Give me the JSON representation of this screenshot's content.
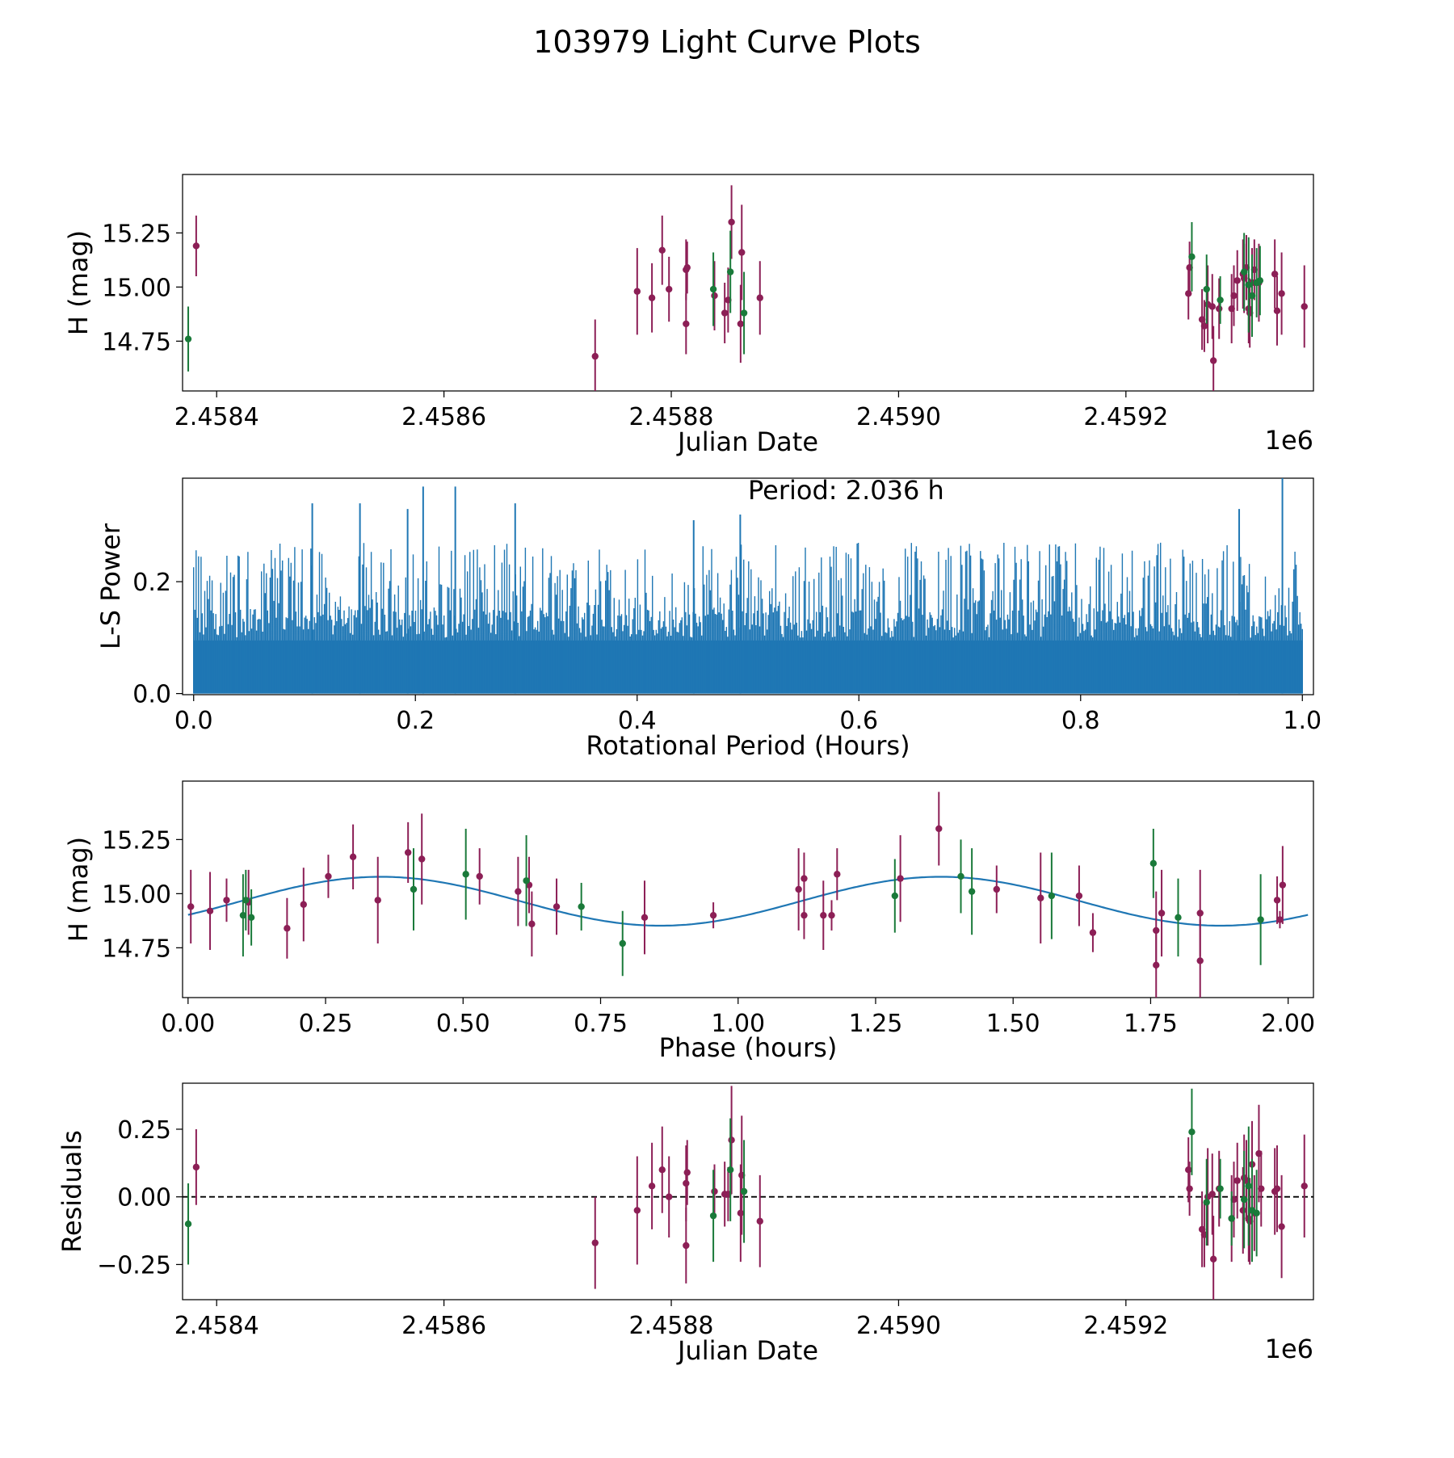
{
  "figure": {
    "title": "103979 Light Curve Plots"
  },
  "colors": {
    "primary": "#8c1f56",
    "secondary": "#1a7a3a",
    "periodogram": "#1f77b4",
    "model": "#1f77b4",
    "zero_line": "#000000"
  },
  "chart_data": [
    {
      "id": "lightcurve",
      "type": "scatter",
      "title": "",
      "xlabel": "Julian Date",
      "ylabel": "H (mag)",
      "x_offset_label": "1e6",
      "xlim": [
        2.45837,
        2.459365
      ],
      "ylim": [
        14.52,
        15.52
      ],
      "xticks": [
        2.4584,
        2.4586,
        2.4588,
        2.459,
        2.4592
      ],
      "xtick_labels": [
        "2.4584",
        "2.4586",
        "2.4588",
        "2.4590",
        "2.4592"
      ],
      "yticks": [
        14.75,
        15.0,
        15.25
      ],
      "ytick_labels": [
        "14.75",
        "15.00",
        "15.25"
      ],
      "series": [
        {
          "name": "band-1",
          "color_key": "primary",
          "points": [
            [
              2.458382,
              15.19,
              0.14
            ],
            [
              2.458733,
              14.68,
              0.17
            ],
            [
              2.45877,
              14.98,
              0.2
            ],
            [
              2.458783,
              14.95,
              0.16
            ],
            [
              2.458792,
              15.17,
              0.16
            ],
            [
              2.458798,
              14.99,
              0.15
            ],
            [
              2.458813,
              15.08,
              0.14
            ],
            [
              2.458814,
              15.09,
              0.12
            ],
            [
              2.458813,
              14.83,
              0.14
            ],
            [
              2.458838,
              14.96,
              0.16
            ],
            [
              2.458847,
              14.88,
              0.14
            ],
            [
              2.45885,
              14.94,
              0.15
            ],
            [
              2.458853,
              15.3,
              0.17
            ],
            [
              2.458861,
              14.83,
              0.18
            ],
            [
              2.458862,
              15.16,
              0.22
            ],
            [
              2.458878,
              14.95,
              0.17
            ],
            [
              2.459255,
              14.97,
              0.12
            ],
            [
              2.459256,
              15.09,
              0.12
            ],
            [
              2.459267,
              14.85,
              0.14
            ],
            [
              2.459269,
              14.82,
              0.12
            ],
            [
              2.459272,
              14.92,
              0.18
            ],
            [
              2.459276,
              14.91,
              0.15
            ],
            [
              2.459277,
              14.66,
              0.16
            ],
            [
              2.459282,
              14.9,
              0.14
            ],
            [
              2.459293,
              14.9,
              0.16
            ],
            [
              2.459295,
              14.96,
              0.14
            ],
            [
              2.459298,
              15.03,
              0.14
            ],
            [
              2.459303,
              15.06,
              0.16
            ],
            [
              2.459304,
              15.04,
              0.16
            ],
            [
              2.459306,
              15.09,
              0.15
            ],
            [
              2.459308,
              14.9,
              0.16
            ],
            [
              2.459309,
              14.88,
              0.16
            ],
            [
              2.459311,
              15.02,
              0.16
            ],
            [
              2.459313,
              15.08,
              0.14
            ],
            [
              2.459317,
              15.02,
              0.18
            ],
            [
              2.459331,
              15.06,
              0.16
            ],
            [
              2.459333,
              14.89,
              0.16
            ],
            [
              2.459337,
              14.97,
              0.19
            ],
            [
              2.459357,
              14.91,
              0.19
            ]
          ]
        },
        {
          "name": "band-2",
          "color_key": "secondary",
          "points": [
            [
              2.458375,
              14.76,
              0.15
            ],
            [
              2.458837,
              14.99,
              0.17
            ],
            [
              2.458852,
              15.07,
              0.19
            ],
            [
              2.458864,
              14.88,
              0.19
            ],
            [
              2.459258,
              15.14,
              0.16
            ],
            [
              2.459271,
              14.99,
              0.16
            ],
            [
              2.459283,
              14.94,
              0.11
            ],
            [
              2.459304,
              15.07,
              0.18
            ],
            [
              2.459308,
              15.01,
              0.22
            ],
            [
              2.459311,
              14.96,
              0.19
            ],
            [
              2.459315,
              15.02,
              0.16
            ],
            [
              2.459318,
              15.03,
              0.16
            ]
          ]
        }
      ]
    },
    {
      "id": "periodogram",
      "type": "line",
      "title": "",
      "xlabel": "Rotational Period (Hours)",
      "ylabel": "L-S Power",
      "annotation": "Period: 2.036 h",
      "xlim": [
        -0.01,
        1.01
      ],
      "ylim": [
        -0.002,
        0.385
      ],
      "xticks": [
        0.0,
        0.2,
        0.4,
        0.6,
        0.8,
        1.0
      ],
      "xtick_labels": [
        "0.0",
        "0.2",
        "0.4",
        "0.6",
        "0.8",
        "1.0"
      ],
      "yticks": [
        0.0,
        0.2
      ],
      "ytick_labels": [
        "0.0",
        "0.2"
      ],
      "envelope": {
        "samples": 900,
        "x_range": [
          0.0,
          1.0
        ],
        "base_power": [
          0.1,
          0.15
        ],
        "spike_power": [
          0.15,
          0.27
        ],
        "peaks": [
          {
            "x": 0.107,
            "y": 0.34
          },
          {
            "x": 0.15,
            "y": 0.34
          },
          {
            "x": 0.193,
            "y": 0.33
          },
          {
            "x": 0.207,
            "y": 0.37
          },
          {
            "x": 0.236,
            "y": 0.37
          },
          {
            "x": 0.29,
            "y": 0.34
          },
          {
            "x": 0.451,
            "y": 0.31
          },
          {
            "x": 0.493,
            "y": 0.32
          },
          {
            "x": 0.943,
            "y": 0.33
          },
          {
            "x": 0.982,
            "y": 0.385
          }
        ]
      }
    },
    {
      "id": "phased",
      "type": "scatter",
      "title": "",
      "xlabel": "Phase (hours)",
      "ylabel": "H (mag)",
      "xlim": [
        -0.01,
        2.046
      ],
      "ylim": [
        14.52,
        15.52
      ],
      "xticks": [
        0.0,
        0.25,
        0.5,
        0.75,
        1.0,
        1.25,
        1.5,
        1.75,
        2.0
      ],
      "xtick_labels": [
        "0.00",
        "0.25",
        "0.50",
        "0.75",
        "1.00",
        "1.25",
        "1.50",
        "1.75",
        "2.00"
      ],
      "yticks": [
        14.75,
        15.0,
        15.25
      ],
      "ytick_labels": [
        "14.75",
        "15.00",
        "15.25"
      ],
      "model": {
        "mean": 14.965,
        "amplitude": 0.113,
        "period": 1.018,
        "phase_at_max": 0.35,
        "x_range": [
          0.0,
          2.036
        ]
      },
      "series": [
        {
          "name": "band-1",
          "color_key": "primary",
          "points": [
            [
              0.005,
              14.94,
              0.17
            ],
            [
              0.04,
              14.92,
              0.18
            ],
            [
              0.07,
              14.97,
              0.1
            ],
            [
              0.11,
              14.96,
              0.15
            ],
            [
              0.18,
              14.84,
              0.14
            ],
            [
              0.21,
              14.95,
              0.17
            ],
            [
              0.255,
              15.08,
              0.1
            ],
            [
              0.3,
              15.17,
              0.15
            ],
            [
              0.345,
              14.97,
              0.2
            ],
            [
              0.4,
              15.19,
              0.14
            ],
            [
              0.425,
              15.16,
              0.21
            ],
            [
              0.53,
              15.08,
              0.13
            ],
            [
              0.6,
              15.01,
              0.16
            ],
            [
              0.62,
              15.04,
              0.13
            ],
            [
              0.625,
              14.86,
              0.15
            ],
            [
              0.67,
              14.94,
              0.13
            ],
            [
              0.83,
              14.89,
              0.17
            ],
            [
              0.955,
              14.9,
              0.06
            ],
            [
              1.11,
              15.02,
              0.19
            ],
            [
              1.12,
              15.07,
              0.12
            ],
            [
              1.12,
              14.9,
              0.11
            ],
            [
              1.155,
              14.9,
              0.16
            ],
            [
              1.17,
              14.9,
              0.07
            ],
            [
              1.18,
              15.09,
              0.12
            ],
            [
              1.295,
              15.07,
              0.2
            ],
            [
              1.365,
              15.3,
              0.17
            ],
            [
              1.47,
              15.02,
              0.11
            ],
            [
              1.55,
              14.98,
              0.21
            ],
            [
              1.62,
              14.99,
              0.14
            ],
            [
              1.645,
              14.82,
              0.09
            ],
            [
              1.76,
              14.67,
              0.16
            ],
            [
              1.76,
              14.83,
              0.18
            ],
            [
              1.77,
              14.91,
              0.2
            ],
            [
              1.84,
              14.91,
              0.2
            ],
            [
              1.84,
              14.69,
              0.19
            ],
            [
              1.98,
              14.97,
              0.11
            ],
            [
              1.985,
              14.88,
              0.04
            ],
            [
              1.99,
              15.04,
              0.18
            ]
          ]
        },
        {
          "name": "band-2",
          "color_key": "secondary",
          "points": [
            [
              0.1,
              14.9,
              0.19
            ],
            [
              0.105,
              14.97,
              0.14
            ],
            [
              0.115,
              14.89,
              0.13
            ],
            [
              0.41,
              15.02,
              0.19
            ],
            [
              0.505,
              15.09,
              0.21
            ],
            [
              0.615,
              15.06,
              0.21
            ],
            [
              0.715,
              14.94,
              0.11
            ],
            [
              0.79,
              14.77,
              0.15
            ],
            [
              1.285,
              14.99,
              0.17
            ],
            [
              1.405,
              15.08,
              0.17
            ],
            [
              1.425,
              15.01,
              0.2
            ],
            [
              1.57,
              14.99,
              0.2
            ],
            [
              1.755,
              15.14,
              0.16
            ],
            [
              1.8,
              14.89,
              0.18
            ],
            [
              1.95,
              14.88,
              0.21
            ]
          ]
        }
      ]
    },
    {
      "id": "residuals",
      "type": "scatter",
      "title": "",
      "xlabel": "Julian Date",
      "ylabel": "Residuals",
      "x_offset_label": "1e6",
      "xlim": [
        2.45837,
        2.459365
      ],
      "ylim": [
        -0.38,
        0.42
      ],
      "xticks": [
        2.4584,
        2.4586,
        2.4588,
        2.459,
        2.4592
      ],
      "xtick_labels": [
        "2.4584",
        "2.4586",
        "2.4588",
        "2.4590",
        "2.4592"
      ],
      "yticks": [
        -0.25,
        0.0,
        0.25
      ],
      "ytick_labels": [
        "−0.25",
        "0.00",
        "0.25"
      ],
      "reference_line": 0.0,
      "series": [
        {
          "name": "band-1",
          "color_key": "primary",
          "points": [
            [
              2.458382,
              0.11,
              0.14
            ],
            [
              2.458733,
              -0.17,
              0.17
            ],
            [
              2.45877,
              -0.05,
              0.2
            ],
            [
              2.458783,
              0.04,
              0.16
            ],
            [
              2.458792,
              0.1,
              0.16
            ],
            [
              2.458798,
              0.0,
              0.15
            ],
            [
              2.458813,
              0.05,
              0.14
            ],
            [
              2.458814,
              0.09,
              0.12
            ],
            [
              2.458813,
              -0.18,
              0.14
            ],
            [
              2.458838,
              0.02,
              0.1
            ],
            [
              2.458847,
              0.01,
              0.12
            ],
            [
              2.45885,
              0.01,
              0.1
            ],
            [
              2.458853,
              0.21,
              0.2
            ],
            [
              2.458861,
              -0.06,
              0.18
            ],
            [
              2.458862,
              0.08,
              0.22
            ],
            [
              2.458878,
              -0.09,
              0.17
            ],
            [
              2.459255,
              0.1,
              0.12
            ],
            [
              2.459256,
              0.03,
              0.1
            ],
            [
              2.459267,
              -0.12,
              0.14
            ],
            [
              2.459269,
              -0.14,
              0.12
            ],
            [
              2.459272,
              0.0,
              0.18
            ],
            [
              2.459276,
              0.01,
              0.15
            ],
            [
              2.459277,
              -0.23,
              0.16
            ],
            [
              2.459282,
              0.03,
              0.14
            ],
            [
              2.459293,
              -0.08,
              0.16
            ],
            [
              2.459295,
              -0.01,
              0.14
            ],
            [
              2.459298,
              0.06,
              0.14
            ],
            [
              2.459303,
              -0.05,
              0.16
            ],
            [
              2.459304,
              0.07,
              0.16
            ],
            [
              2.459306,
              0.06,
              0.15
            ],
            [
              2.459308,
              -0.08,
              0.16
            ],
            [
              2.459309,
              -0.09,
              0.16
            ],
            [
              2.459311,
              0.12,
              0.16
            ],
            [
              2.459313,
              -0.06,
              0.14
            ],
            [
              2.459317,
              0.16,
              0.18
            ],
            [
              2.459319,
              0.03,
              0.14
            ],
            [
              2.459331,
              0.02,
              0.16
            ],
            [
              2.459333,
              0.03,
              0.16
            ],
            [
              2.459337,
              -0.11,
              0.19
            ],
            [
              2.459357,
              0.04,
              0.19
            ]
          ]
        },
        {
          "name": "band-2",
          "color_key": "secondary",
          "points": [
            [
              2.458375,
              -0.1,
              0.15
            ],
            [
              2.458837,
              -0.07,
              0.17
            ],
            [
              2.458852,
              0.1,
              0.19
            ],
            [
              2.458864,
              0.02,
              0.19
            ],
            [
              2.459258,
              0.24,
              0.16
            ],
            [
              2.459271,
              -0.02,
              0.16
            ],
            [
              2.459283,
              0.03,
              0.11
            ],
            [
              2.459293,
              -0.08,
              0.1
            ],
            [
              2.459304,
              -0.01,
              0.18
            ],
            [
              2.459308,
              0.04,
              0.22
            ],
            [
              2.459311,
              -0.05,
              0.19
            ],
            [
              2.459315,
              -0.06,
              0.16
            ]
          ]
        }
      ]
    }
  ]
}
